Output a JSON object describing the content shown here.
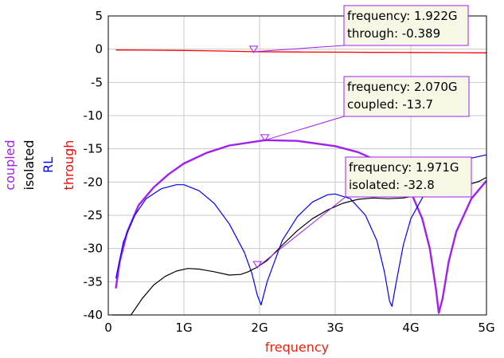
{
  "chart_data": {
    "type": "line",
    "xlabel": "frequency",
    "x_axis_color": "#e8230e",
    "xlim": [
      0,
      5
    ],
    "ylim": [
      -40,
      5
    ],
    "x_ticks": [
      {
        "v": 0,
        "label": "0"
      },
      {
        "v": 1,
        "label": "1G"
      },
      {
        "v": 2,
        "label": "2G"
      },
      {
        "v": 3,
        "label": "3G"
      },
      {
        "v": 4,
        "label": "4G"
      },
      {
        "v": 5,
        "label": "5G"
      }
    ],
    "y_ticks": [
      {
        "v": 5,
        "label": "5"
      },
      {
        "v": 0,
        "label": "0"
      },
      {
        "v": -5,
        "label": "-5"
      },
      {
        "v": -10,
        "label": "-10"
      },
      {
        "v": -15,
        "label": "-15"
      },
      {
        "v": -20,
        "label": "-20"
      },
      {
        "v": -25,
        "label": "-25"
      },
      {
        "v": -30,
        "label": "-30"
      },
      {
        "v": -35,
        "label": "-35"
      },
      {
        "v": -40,
        "label": "-40"
      }
    ],
    "grid": true,
    "y_labels": [
      {
        "text": "coupled",
        "color": "#a020f0"
      },
      {
        "text": "isolated",
        "color": "#000000"
      },
      {
        "text": "RL",
        "color": "#0000ff"
      },
      {
        "text": "through",
        "color": "#ff0000"
      }
    ],
    "series": [
      {
        "name": "through",
        "color": "#ff0000",
        "width": 1.3,
        "x": [
          0.1,
          0.5,
          1.0,
          1.5,
          1.922,
          2.5,
          3.0,
          3.5,
          4.0,
          4.5,
          5.0
        ],
        "y": [
          -0.12,
          -0.15,
          -0.2,
          -0.28,
          -0.389,
          -0.42,
          -0.45,
          -0.48,
          -0.5,
          -0.52,
          -0.55
        ]
      },
      {
        "name": "coupled",
        "color": "#a020f0",
        "width": 2.4,
        "x": [
          0.1,
          0.15,
          0.25,
          0.4,
          0.6,
          0.8,
          1.0,
          1.3,
          1.6,
          2.07,
          2.5,
          3.0,
          3.3,
          3.6,
          3.8,
          4.0,
          4.15,
          4.25,
          4.33,
          4.37,
          4.42,
          4.5,
          4.6,
          4.8,
          5.0
        ],
        "y": [
          -36,
          -32,
          -27.5,
          -23.5,
          -20.8,
          -18.8,
          -17.2,
          -15.6,
          -14.5,
          -13.7,
          -13.8,
          -14.6,
          -15.5,
          -17,
          -18.6,
          -21.5,
          -25.5,
          -30,
          -36,
          -39.7,
          -37.5,
          -32,
          -27.5,
          -22.5,
          -19.8
        ]
      },
      {
        "name": "RL",
        "color": "#0000ff",
        "width": 1.2,
        "x": [
          0.1,
          0.2,
          0.35,
          0.5,
          0.7,
          0.9,
          1.0,
          1.2,
          1.4,
          1.6,
          1.8,
          1.9,
          1.97,
          2.02,
          2.1,
          2.3,
          2.5,
          2.7,
          2.9,
          3.0,
          3.2,
          3.4,
          3.55,
          3.65,
          3.72,
          3.75,
          3.8,
          3.9,
          4.0,
          4.2,
          4.4,
          4.6,
          4.8,
          5.0
        ],
        "y": [
          -34.5,
          -29,
          -25,
          -22.5,
          -21,
          -20.4,
          -20.4,
          -21.3,
          -23.2,
          -26.3,
          -30.6,
          -33.8,
          -37,
          -38.5,
          -35,
          -28.8,
          -25.2,
          -23,
          -21.9,
          -21.8,
          -22.5,
          -25,
          -28.8,
          -33.5,
          -38,
          -38.7,
          -35.5,
          -29.5,
          -25.5,
          -21.4,
          -19.2,
          -17.6,
          -16.4,
          -15.9
        ]
      },
      {
        "name": "isolated",
        "color": "#000000",
        "width": 1.2,
        "x": [
          0.05,
          0.15,
          0.3,
          0.45,
          0.6,
          0.75,
          0.9,
          1.05,
          1.2,
          1.4,
          1.6,
          1.75,
          1.85,
          1.971,
          2.1,
          2.3,
          2.5,
          2.7,
          2.9,
          3.1,
          3.3,
          3.5,
          3.7,
          3.9,
          4.1,
          4.3,
          4.5,
          4.7,
          4.9,
          5.0
        ],
        "y": [
          -40,
          -40,
          -40,
          -37.5,
          -35.5,
          -34.2,
          -33.4,
          -33,
          -33.1,
          -33.5,
          -34,
          -33.9,
          -33.5,
          -32.8,
          -31.8,
          -29.5,
          -27.3,
          -25.5,
          -24.2,
          -23.2,
          -22.6,
          -22.4,
          -22.5,
          -22.4,
          -22,
          -21.6,
          -21.1,
          -20.6,
          -19.9,
          -19.3
        ]
      }
    ],
    "markers": [
      {
        "x": 1.922,
        "y": -0.389,
        "lines": [
          "frequency: 1.922G",
          "through: -0.389"
        ]
      },
      {
        "x": 2.07,
        "y": -13.7,
        "lines": [
          "frequency: 2.070G",
          "coupled: -13.7"
        ]
      },
      {
        "x": 1.971,
        "y": -32.8,
        "lines": [
          "frequency: 1.971G",
          "isolated: -32.8"
        ]
      }
    ],
    "marker_color": "#a020f0"
  }
}
